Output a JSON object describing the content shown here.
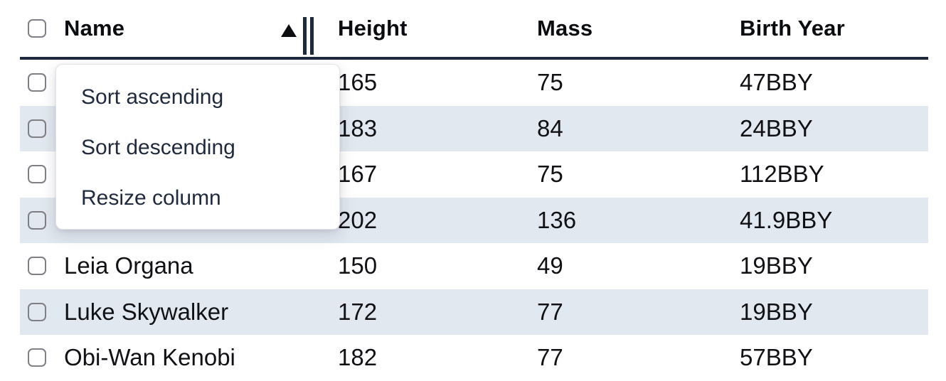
{
  "table": {
    "columns": [
      {
        "key": "name",
        "label": "Name",
        "sorted": "ascending"
      },
      {
        "key": "height",
        "label": "Height"
      },
      {
        "key": "mass",
        "label": "Mass"
      },
      {
        "key": "birth_year",
        "label": "Birth Year"
      }
    ],
    "rows": [
      {
        "name": "",
        "height": "165",
        "mass": "75",
        "birth_year": "47BBY",
        "striped": false
      },
      {
        "name": "",
        "height": "183",
        "mass": "84",
        "birth_year": "24BBY",
        "striped": true
      },
      {
        "name": "",
        "height": "167",
        "mass": "75",
        "birth_year": "112BBY",
        "striped": false
      },
      {
        "name": "",
        "height": "202",
        "mass": "136",
        "birth_year": "41.9BBY",
        "striped": true
      },
      {
        "name": "Leia Organa",
        "height": "150",
        "mass": "49",
        "birth_year": "19BBY",
        "striped": false
      },
      {
        "name": "Luke Skywalker",
        "height": "172",
        "mass": "77",
        "birth_year": "19BBY",
        "striped": true
      },
      {
        "name": "Obi-Wan Kenobi",
        "height": "182",
        "mass": "77",
        "birth_year": "57BBY",
        "striped": false
      }
    ]
  },
  "context_menu": {
    "items": [
      {
        "label": "Sort ascending"
      },
      {
        "label": "Sort descending"
      },
      {
        "label": "Resize column"
      }
    ]
  },
  "icons": {
    "sort_ascending_indicator": "black-up-triangle",
    "column_resize_handle": "double-vertical-bars",
    "row_selector": "empty-rounded-checkbox"
  },
  "colors": {
    "stripe": "#e2e8f0",
    "header_border": "#1e293b",
    "header_text": "#0a0c10",
    "cell_text": "#101114",
    "menu_text": "#1f2a3c",
    "menu_border": "#e3e4e8",
    "checkbox_border": "#7f7f86",
    "icon_dark": "#0d0e10"
  }
}
